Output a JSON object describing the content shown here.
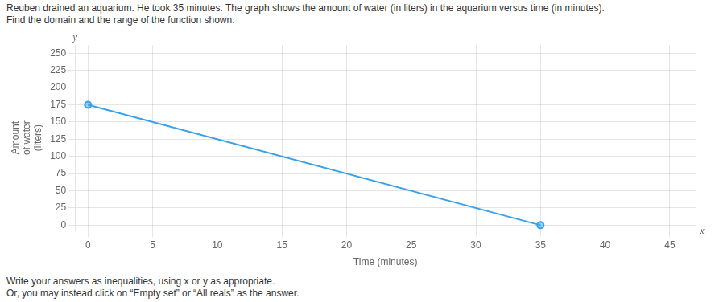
{
  "chart_data": {
    "type": "line",
    "title": "Reuben drained an aquarium. He took 35 minutes. The graph shows the amount of water (in liters) in the aquarium versus time (in minutes).",
    "subtitle": "Find the domain and the range of the function shown.",
    "xlabel": "Time (minutes)",
    "ylabel": [
      "Amount",
      "of water",
      "(liters)"
    ],
    "annotations": [
      "y",
      "x"
    ],
    "notes": [
      "Write your answers as inequalities, using x or y as appropriate.",
      "Or, you may instead click on “Empty set” or “All reals” as the answer."
    ],
    "x": [
      0,
      35
    ],
    "values": [
      175,
      0
    ],
    "marker": "circle",
    "xlim": [
      -1,
      47
    ],
    "ylim": [
      -8,
      262
    ],
    "xticks": [
      0,
      5,
      10,
      15,
      20,
      25,
      30,
      35,
      40,
      45
    ],
    "yticks": [
      0,
      25,
      50,
      75,
      100,
      125,
      150,
      175,
      200,
      225,
      250
    ],
    "grid": true
  }
}
